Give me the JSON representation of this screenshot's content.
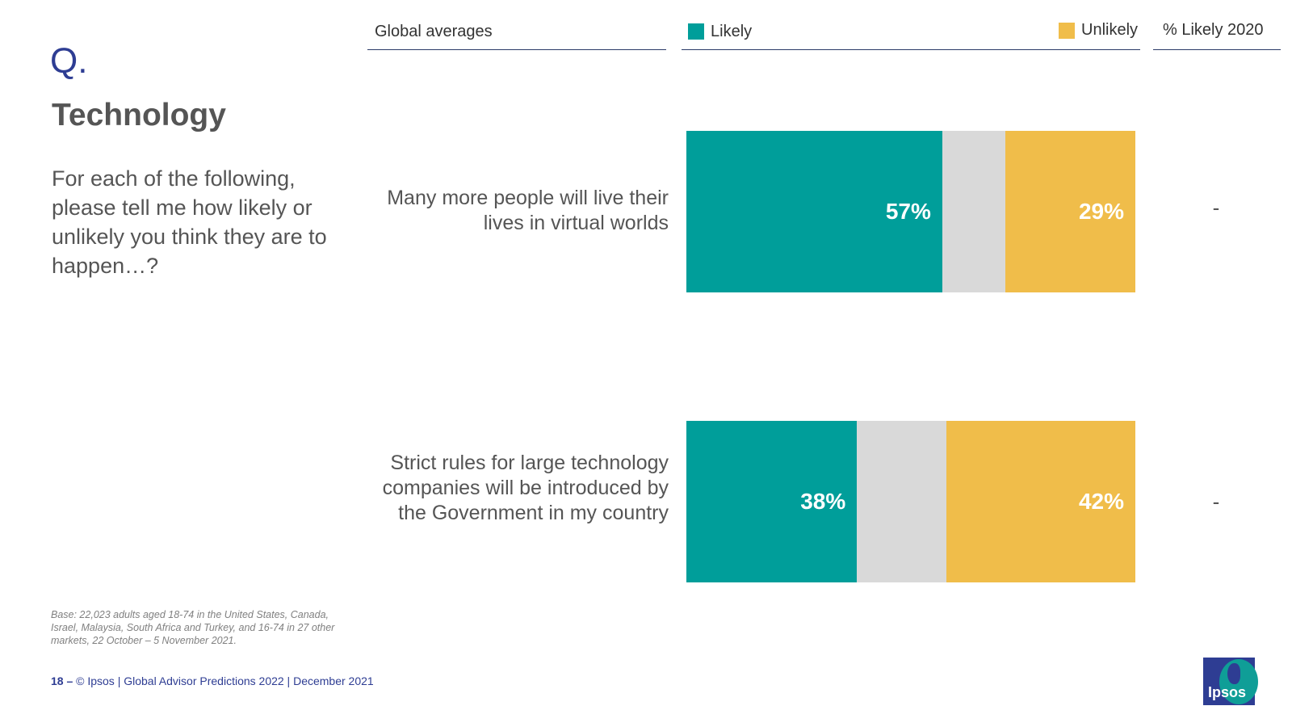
{
  "question": {
    "mark": "Q.",
    "section_title": "Technology",
    "text": "For each of the following, please tell me how likely or unlikely you think they are to happen…?"
  },
  "header": {
    "column_label": "Global averages",
    "likely_label": "Likely",
    "unlikely_label": "Unlikely",
    "prior_label": "% Likely 2020"
  },
  "colors": {
    "likely": "#009e9a",
    "neutral": "#d9d9d9",
    "unlikely": "#f0bd4a",
    "brand": "#2e3d93"
  },
  "chart_data": {
    "type": "bar",
    "orientation": "horizontal",
    "stacked": true,
    "categories": [
      "Many more people will live their lives in virtual worlds",
      "Strict rules for large technology companies will be introduced by the Government in my country"
    ],
    "series": [
      {
        "name": "Likely",
        "values": [
          57,
          38
        ],
        "labels": [
          "57%",
          "38%"
        ]
      },
      {
        "values": [
          14,
          20
        ]
      },
      {
        "name": "Unlikely",
        "values": [
          29,
          42
        ],
        "labels": [
          "29%",
          "42%"
        ]
      }
    ],
    "prior_values": [
      "-",
      "-"
    ],
    "xlim": [
      0,
      100
    ]
  },
  "footer": {
    "base": "Base: 22,023 adults aged 18-74 in the United States, Canada, Israel, Malaysia, South Africa and Turkey, and 16-74 in 27 other markets, 22 October – 5 November 2021.",
    "page": "18 –",
    "credit": "© Ipsos | Global Advisor Predictions 2022 | December 2021",
    "logo_text": "Ipsos"
  }
}
